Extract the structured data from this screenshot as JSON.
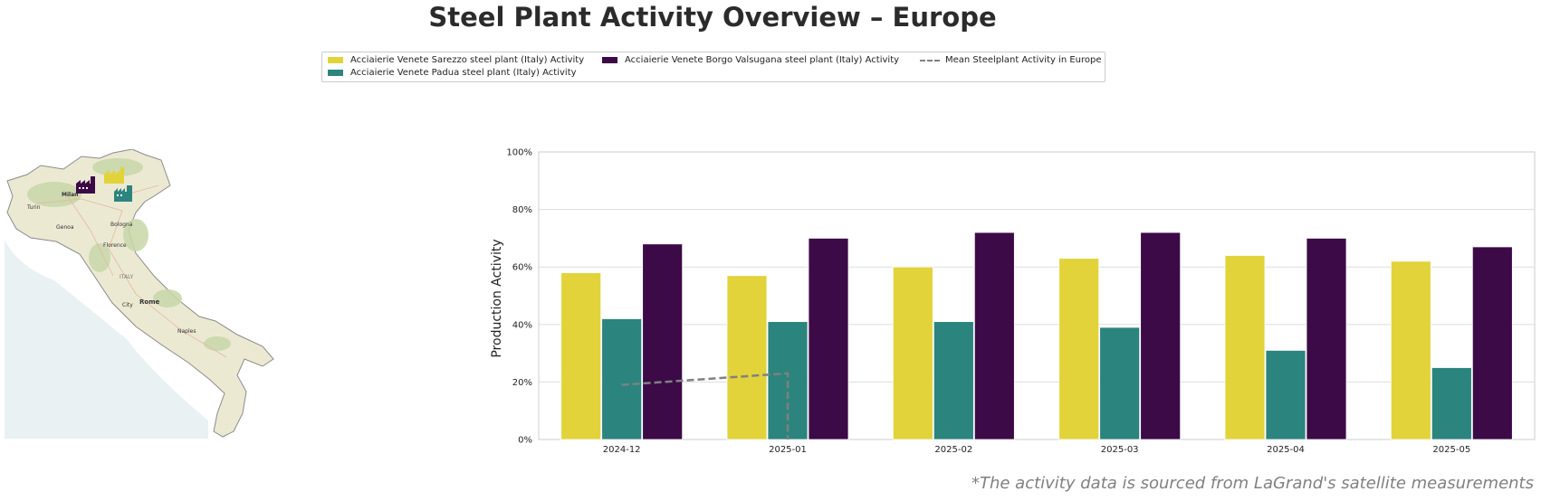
{
  "title": "Steel Plant Activity Overview – Europe",
  "footnote": "*The activity data is sourced from LaGrand's satellite measurements",
  "map": {
    "city_labels": [
      "Milan",
      "Turin",
      "Genoa",
      "Bologna",
      "Florence",
      "ITALY",
      "Rome",
      "City",
      "Naples"
    ],
    "plant_icons": [
      {
        "name": "Acciaierie Venete Sarezzo steel plant (Italy)",
        "color": "#e2d33b",
        "icon": "factory-icon"
      },
      {
        "name": "Acciaierie Venete Borgo Valsugana steel plant (Italy)",
        "color": "#3c0a47",
        "icon": "factory-icon"
      },
      {
        "name": "Acciaierie Venete Padua steel plant (Italy)",
        "color": "#2c847e",
        "icon": "factory-icon"
      }
    ]
  },
  "legend": {
    "items": [
      {
        "label": "Acciaierie Venete Sarezzo steel plant (Italy) Activity",
        "color": "#e2d33b",
        "kind": "bar"
      },
      {
        "label": "Acciaierie Venete Padua steel plant (Italy) Activity",
        "color": "#2c847e",
        "kind": "bar"
      },
      {
        "label": "Acciaierie Venete Borgo Valsugana steel plant (Italy) Activity",
        "color": "#3c0a47",
        "kind": "bar"
      },
      {
        "label": "Mean Steelplant Activity in Europe",
        "color": "#808080",
        "kind": "dashed-line"
      }
    ]
  },
  "chart_data": {
    "type": "bar",
    "title": "",
    "xlabel": "",
    "ylabel": "Production Activity",
    "ylim": [
      0,
      100
    ],
    "yticks": [
      "0%",
      "20%",
      "40%",
      "60%",
      "80%",
      "100%"
    ],
    "grid": "horizontal",
    "categories": [
      "2024-12",
      "2025-01",
      "2025-02",
      "2025-03",
      "2025-04",
      "2025-05"
    ],
    "series": [
      {
        "name": "Acciaierie Venete Sarezzo steel plant (Italy) Activity",
        "color": "#e2d33b",
        "values": [
          58,
          57,
          60,
          63,
          64,
          62
        ]
      },
      {
        "name": "Acciaierie Venete Padua steel plant (Italy) Activity",
        "color": "#2c847e",
        "values": [
          42,
          41,
          41,
          39,
          31,
          25
        ]
      },
      {
        "name": "Acciaierie Venete Borgo Valsugana steel plant (Italy) Activity",
        "color": "#3c0a47",
        "values": [
          68,
          70,
          72,
          72,
          70,
          67
        ]
      }
    ],
    "mean_line": {
      "name": "Mean Steelplant Activity in Europe",
      "color": "#808080",
      "style": "dashed",
      "x": [
        "2024-12",
        "2025-01",
        "2025-01"
      ],
      "values": [
        19,
        23,
        0
      ]
    }
  }
}
